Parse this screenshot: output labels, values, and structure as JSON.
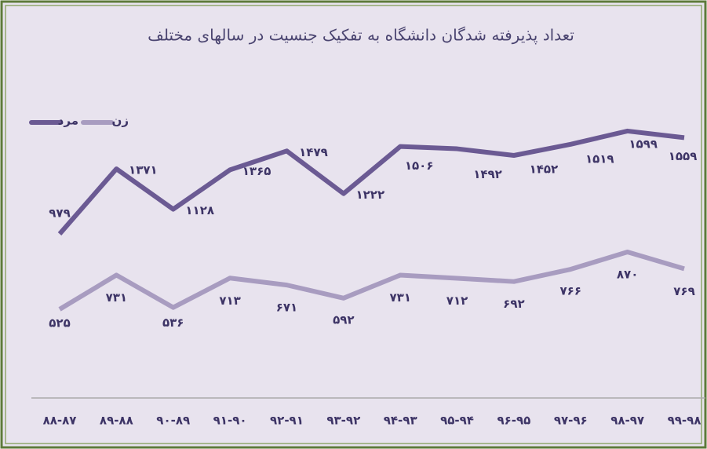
{
  "chart_data": {
    "type": "line",
    "title": "تعداد پذیرفته شدگان دانشگاه به تفکیک جنسیت در سالهای مختلف",
    "categories": [
      "۸۸-۸۷",
      "۸۹-۸۸",
      "۹۰-۸۹",
      "۹۱-۹۰",
      "۹۲-۹۱",
      "۹۳-۹۲",
      "۹۴-۹۳",
      "۹۵-۹۴",
      "۹۶-۹۵",
      "۹۷-۹۶",
      "۹۸-۹۷",
      "۹۹-۹۸"
    ],
    "series": [
      {
        "name": "مرد",
        "color": "#6b5a93",
        "values": [
          979,
          1371,
          1128,
          1365,
          1479,
          1222,
          1506,
          1492,
          1452,
          1519,
          1599,
          1559
        ],
        "value_labels": [
          "۹۷۹",
          "۱۳۷۱",
          "۱۱۲۸",
          "۱۳۶۵",
          "۱۴۷۹",
          "۱۲۲۲",
          "۱۵۰۶",
          "۱۴۹۲",
          "۱۴۵۲",
          "۱۵۱۹",
          "۱۵۹۹",
          "۱۵۵۹"
        ]
      },
      {
        "name": "زن",
        "color": "#a89cc0",
        "values": [
          525,
          731,
          536,
          713,
          671,
          592,
          731,
          712,
          692,
          766,
          870,
          769
        ],
        "value_labels": [
          "۵۲۵",
          "۷۳۱",
          "۵۳۶",
          "۷۱۳",
          "۶۷۱",
          "۵۹۲",
          "۷۳۱",
          "۷۱۲",
          "۶۹۲",
          "۷۶۶",
          "۸۷۰",
          "۷۶۹"
        ]
      }
    ],
    "ylim": [
      0,
      2100
    ],
    "legend": "top-left"
  }
}
